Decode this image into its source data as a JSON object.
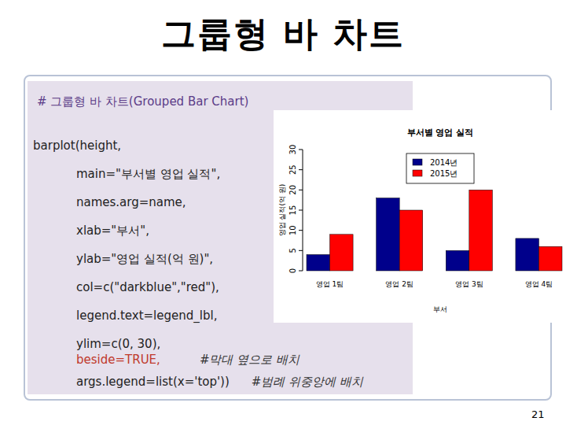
{
  "slide": {
    "title": "그룹형 바 차트",
    "code": [
      {
        "text": "# 그룹형 바 차트(Grouped Bar Chart)"
      },
      {
        "text": "barplot(height,"
      },
      {
        "text": "main=\"부서별 영업 실적\","
      },
      {
        "text": "names.arg=name,"
      },
      {
        "text": "xlab=\"부서\","
      },
      {
        "text": "ylab=\"영업 실적(억 원)\","
      },
      {
        "text": "col=c(\"darkblue\",\"red\"),"
      },
      {
        "text": "legend.text=legend_lbl,"
      },
      {
        "text": "ylim=c(0, 30),"
      },
      {
        "text": "beside=TRUE,",
        "comment": "#막대 옆으로 배치"
      },
      {
        "text": "args.legend=list(x='top'))",
        "comment": "#범례 위중앙에 배치"
      }
    ],
    "page": "21"
  },
  "chart_data": {
    "type": "bar",
    "title": "부서별 영업 실적",
    "x_label": "부서",
    "y_label": "영업 실적(억 원)",
    "categories": [
      "영업 1팀",
      "영업 2팀",
      "영업 3팀",
      "영업 4팀"
    ],
    "series": [
      {
        "name": "2014년",
        "color": "#00008b",
        "values": [
          4,
          18,
          5,
          8
        ]
      },
      {
        "name": "2015년",
        "color": "#ff0000",
        "values": [
          9,
          15,
          20,
          6
        ]
      }
    ],
    "ylim": [
      0,
      30
    ],
    "yticks": [
      0,
      5,
      10,
      15,
      20,
      25,
      30
    ],
    "grid": false,
    "legend": "top"
  }
}
